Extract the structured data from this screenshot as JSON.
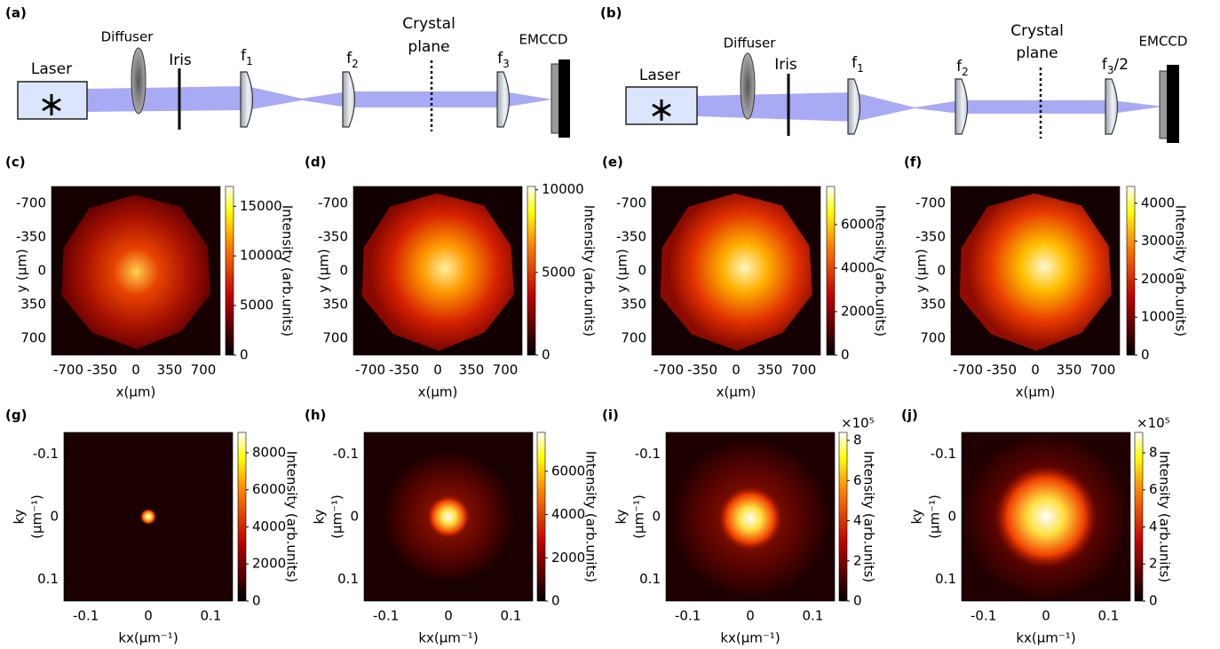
{
  "setups": [
    {
      "label": "(a)",
      "laser": "Laser",
      "diffuser": "Diffuser",
      "iris": "Iris",
      "lenses": [
        {
          "name": "f",
          "sub": "1"
        },
        {
          "name": "f",
          "sub": "2"
        },
        {
          "name": "f",
          "sub": "3"
        }
      ],
      "crystal": [
        "Crystal",
        "plane"
      ],
      "camera": "EMCCD"
    },
    {
      "label": "(b)",
      "laser": "Laser",
      "diffuser": "Diffuser",
      "iris": "Iris",
      "lenses": [
        {
          "name": "f",
          "sub": "1"
        },
        {
          "name": "f",
          "sub": "2"
        },
        {
          "name": "f",
          "sub": "3",
          "suffix": "/2"
        }
      ],
      "crystal": [
        "Crystal",
        "plane"
      ],
      "camera": "EMCCD"
    }
  ],
  "chart_data": [
    {
      "type": "heatmap",
      "label": "(c)",
      "xlabel": "x(µm)",
      "ylabel": "y (µm)",
      "colormap": "hot",
      "xlim": [
        -875,
        875
      ],
      "ylim": [
        -875,
        875
      ],
      "y_reversed": true,
      "xticks": [
        -700,
        -350,
        0,
        350,
        700
      ],
      "yticks": [
        -700,
        -350,
        0,
        350,
        700
      ],
      "colorbar": {
        "label": "Intensity (arb.units)",
        "lim": [
          0,
          17000
        ],
        "ticks": [
          0,
          5000,
          10000,
          15000
        ]
      }
    },
    {
      "type": "heatmap",
      "label": "(d)",
      "xlabel": "x(µm)",
      "ylabel": "y (µm)",
      "colormap": "hot",
      "xlim": [
        -875,
        875
      ],
      "ylim": [
        -875,
        875
      ],
      "y_reversed": true,
      "xticks": [
        -700,
        -350,
        0,
        350,
        700
      ],
      "yticks": [
        -700,
        -350,
        0,
        350,
        700
      ],
      "colorbar": {
        "label": "Intensity (arb.units)",
        "lim": [
          0,
          10200
        ],
        "ticks": [
          0,
          5000,
          10000
        ]
      }
    },
    {
      "type": "heatmap",
      "label": "(e)",
      "xlabel": "x(µm)",
      "ylabel": "y (µm)",
      "colormap": "hot",
      "xlim": [
        -875,
        875
      ],
      "ylim": [
        -875,
        875
      ],
      "y_reversed": true,
      "xticks": [
        -700,
        -350,
        0,
        350,
        700
      ],
      "yticks": [
        -700,
        -350,
        0,
        350,
        700
      ],
      "colorbar": {
        "label": "Intensity (arb.units)",
        "lim": [
          0,
          7750
        ],
        "ticks": [
          0,
          2000,
          4000,
          6000
        ]
      }
    },
    {
      "type": "heatmap",
      "label": "(f)",
      "xlabel": "x(µm)",
      "ylabel": "y (µm)",
      "colormap": "hot",
      "xlim": [
        -875,
        875
      ],
      "ylim": [
        -875,
        875
      ],
      "y_reversed": true,
      "xticks": [
        -700,
        -350,
        0,
        350,
        700
      ],
      "yticks": [
        -700,
        -350,
        0,
        350,
        700
      ],
      "colorbar": {
        "label": "Intensity (arb.units)",
        "lim": [
          0,
          4440
        ],
        "ticks": [
          0,
          1000,
          2000,
          3000,
          4000
        ]
      }
    },
    {
      "type": "heatmap",
      "label": "(g)",
      "xlabel": "kx(µm⁻¹)",
      "ylabel": [
        "ky",
        "(µm⁻¹)"
      ],
      "colormap": "hot",
      "xlim": [
        -0.135,
        0.135
      ],
      "ylim": [
        -0.135,
        0.135
      ],
      "y_reversed": true,
      "xticks": [
        -0.1,
        0,
        0.1
      ],
      "yticks": [
        -0.1,
        0,
        0.1
      ],
      "colorbar": {
        "label": "Intensity (arb.units)",
        "lim": [
          0,
          9100
        ],
        "ticks": [
          0,
          2000,
          4000,
          6000,
          8000
        ]
      }
    },
    {
      "type": "heatmap",
      "label": "(h)",
      "xlabel": "kx(µm⁻¹)",
      "ylabel": [
        "ky",
        "(µm⁻¹)"
      ],
      "colormap": "hot",
      "xlim": [
        -0.135,
        0.135
      ],
      "ylim": [
        -0.135,
        0.135
      ],
      "y_reversed": true,
      "xticks": [
        -0.1,
        0,
        0.1
      ],
      "yticks": [
        -0.1,
        0,
        0.1
      ],
      "colorbar": {
        "label": "Intensity (arb.units)",
        "lim": [
          0,
          7800
        ],
        "ticks": [
          0,
          2000,
          4000,
          6000
        ]
      }
    },
    {
      "type": "heatmap",
      "label": "(i)",
      "xlabel": "kx(µm⁻¹)",
      "ylabel": [
        "ky",
        "(µm⁻¹)"
      ],
      "colormap": "hot",
      "xlim": [
        -0.135,
        0.135
      ],
      "ylim": [
        -0.135,
        0.135
      ],
      "y_reversed": true,
      "xticks": [
        -0.1,
        0,
        0.1
      ],
      "yticks": [
        -0.1,
        0,
        0.1
      ],
      "colorbar": {
        "label": "Intensity (arb.units)",
        "lim": [
          0,
          840000
        ],
        "offset_label": "×10⁵",
        "ticks": [
          {
            "value": 0,
            "label": "0"
          },
          {
            "value": 200000,
            "label": "2"
          },
          {
            "value": 400000,
            "label": "4"
          },
          {
            "value": 600000,
            "label": "6"
          },
          {
            "value": 800000,
            "label": "8"
          }
        ]
      }
    },
    {
      "type": "heatmap",
      "label": "(j)",
      "xlabel": "kx(µm⁻¹)",
      "ylabel": [
        "ky",
        "(µm⁻¹)"
      ],
      "colormap": "hot",
      "xlim": [
        -0.135,
        0.135
      ],
      "ylim": [
        -0.135,
        0.135
      ],
      "y_reversed": true,
      "xticks": [
        -0.1,
        0,
        0.1
      ],
      "yticks": [
        -0.1,
        0,
        0.1
      ],
      "colorbar": {
        "label": "Intensity (arb.units)",
        "lim": [
          0,
          910000
        ],
        "offset_label": "×10⁵",
        "ticks": [
          {
            "value": 0,
            "label": "0"
          },
          {
            "value": 200000,
            "label": "2"
          },
          {
            "value": 400000,
            "label": "4"
          },
          {
            "value": 600000,
            "label": "6"
          },
          {
            "value": 800000,
            "label": "8"
          }
        ]
      }
    }
  ]
}
